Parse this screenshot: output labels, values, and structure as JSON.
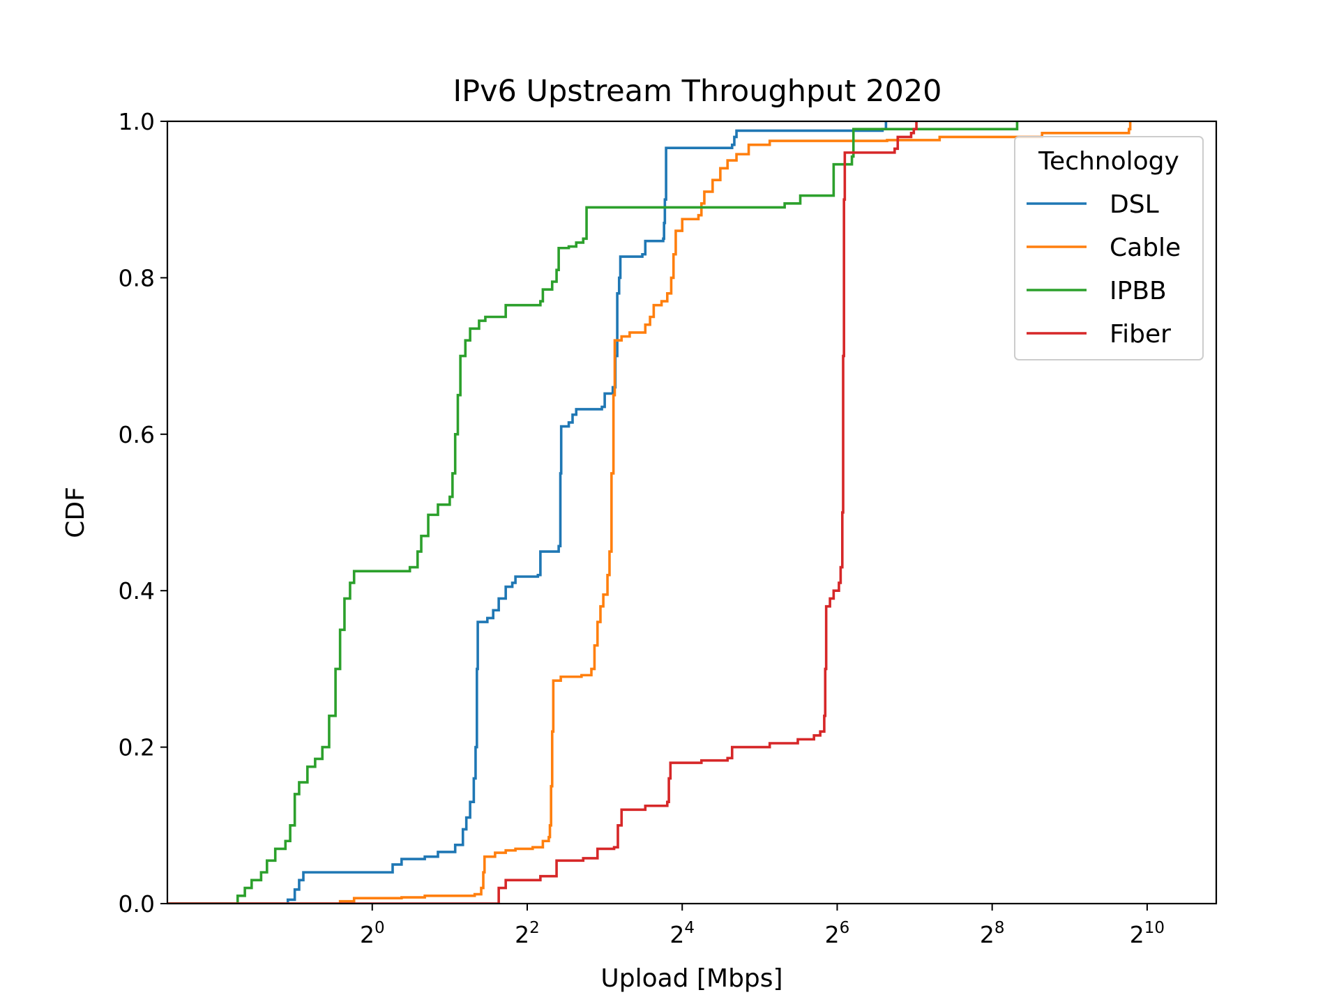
{
  "chart_data": {
    "type": "line",
    "title": "IPv6 Upstream Throughput 2020",
    "xlabel": "Upload [Mbps]",
    "ylabel": "CDF",
    "xscale": "log2",
    "xlim": [
      0.16,
      1900
    ],
    "ylim": [
      0,
      1.0
    ],
    "x_ticks": [
      {
        "value": 1,
        "base": "2",
        "exp": "0"
      },
      {
        "value": 4,
        "base": "2",
        "exp": "2"
      },
      {
        "value": 16,
        "base": "2",
        "exp": "4"
      },
      {
        "value": 64,
        "base": "2",
        "exp": "6"
      },
      {
        "value": 256,
        "base": "2",
        "exp": "8"
      },
      {
        "value": 1024,
        "base": "2",
        "exp": "10"
      }
    ],
    "y_ticks": [
      "0.0",
      "0.2",
      "0.4",
      "0.6",
      "0.8",
      "1.0"
    ],
    "grid": false,
    "legend": {
      "title": "Technology",
      "position": "upper right"
    },
    "series": [
      {
        "name": "DSL",
        "color": "#1f77b4",
        "points": [
          [
            0.16,
            0.0
          ],
          [
            0.46,
            0.0
          ],
          [
            0.47,
            0.005
          ],
          [
            0.5,
            0.018
          ],
          [
            0.52,
            0.03
          ],
          [
            0.54,
            0.04
          ],
          [
            1.15,
            0.04
          ],
          [
            1.2,
            0.05
          ],
          [
            1.3,
            0.057
          ],
          [
            1.6,
            0.06
          ],
          [
            1.8,
            0.066
          ],
          [
            2.1,
            0.075
          ],
          [
            2.25,
            0.095
          ],
          [
            2.32,
            0.11
          ],
          [
            2.4,
            0.13
          ],
          [
            2.48,
            0.16
          ],
          [
            2.52,
            0.2
          ],
          [
            2.55,
            0.3
          ],
          [
            2.57,
            0.36
          ],
          [
            2.8,
            0.365
          ],
          [
            2.95,
            0.375
          ],
          [
            3.1,
            0.39
          ],
          [
            3.3,
            0.405
          ],
          [
            3.5,
            0.41
          ],
          [
            3.6,
            0.418
          ],
          [
            4.4,
            0.42
          ],
          [
            4.5,
            0.45
          ],
          [
            5.3,
            0.457
          ],
          [
            5.38,
            0.55
          ],
          [
            5.42,
            0.61
          ],
          [
            5.8,
            0.615
          ],
          [
            6.0,
            0.625
          ],
          [
            6.2,
            0.632
          ],
          [
            7.8,
            0.635
          ],
          [
            8.0,
            0.652
          ],
          [
            8.6,
            0.66
          ],
          [
            8.8,
            0.7
          ],
          [
            8.95,
            0.78
          ],
          [
            9.1,
            0.8
          ],
          [
            9.2,
            0.827
          ],
          [
            11.2,
            0.83
          ],
          [
            11.5,
            0.847
          ],
          [
            13.5,
            0.85
          ],
          [
            13.6,
            0.87
          ],
          [
            13.7,
            0.9
          ],
          [
            13.85,
            0.966
          ],
          [
            25.0,
            0.97
          ],
          [
            25.5,
            0.98
          ],
          [
            26.0,
            0.988
          ],
          [
            96.0,
            0.99
          ],
          [
            99.0,
            1.0
          ]
        ]
      },
      {
        "name": "Cable",
        "color": "#ff7f0e",
        "points": [
          [
            0.16,
            0.0
          ],
          [
            0.7,
            0.0
          ],
          [
            0.75,
            0.003
          ],
          [
            0.85,
            0.007
          ],
          [
            1.3,
            0.008
          ],
          [
            1.6,
            0.01
          ],
          [
            2.5,
            0.012
          ],
          [
            2.65,
            0.02
          ],
          [
            2.7,
            0.04
          ],
          [
            2.73,
            0.06
          ],
          [
            3.0,
            0.065
          ],
          [
            3.3,
            0.068
          ],
          [
            3.6,
            0.07
          ],
          [
            4.2,
            0.072
          ],
          [
            4.6,
            0.08
          ],
          [
            4.85,
            0.085
          ],
          [
            4.9,
            0.1
          ],
          [
            4.95,
            0.15
          ],
          [
            5.0,
            0.22
          ],
          [
            5.05,
            0.285
          ],
          [
            5.4,
            0.29
          ],
          [
            6.5,
            0.292
          ],
          [
            7.1,
            0.3
          ],
          [
            7.3,
            0.33
          ],
          [
            7.5,
            0.36
          ],
          [
            7.7,
            0.38
          ],
          [
            7.9,
            0.395
          ],
          [
            8.2,
            0.42
          ],
          [
            8.35,
            0.45
          ],
          [
            8.5,
            0.55
          ],
          [
            8.65,
            0.65
          ],
          [
            8.75,
            0.72
          ],
          [
            9.3,
            0.725
          ],
          [
            10.0,
            0.73
          ],
          [
            11.5,
            0.74
          ],
          [
            12.0,
            0.75
          ],
          [
            12.4,
            0.765
          ],
          [
            13.3,
            0.77
          ],
          [
            14.0,
            0.78
          ],
          [
            14.5,
            0.8
          ],
          [
            14.8,
            0.83
          ],
          [
            15.1,
            0.86
          ],
          [
            16.0,
            0.875
          ],
          [
            18.5,
            0.88
          ],
          [
            19.0,
            0.895
          ],
          [
            19.5,
            0.91
          ],
          [
            21.0,
            0.925
          ],
          [
            22.5,
            0.94
          ],
          [
            24.0,
            0.95
          ],
          [
            26.0,
            0.958
          ],
          [
            29.0,
            0.97
          ],
          [
            35.0,
            0.975
          ],
          [
            100.0,
            0.976
          ],
          [
            160.0,
            0.98
          ],
          [
            400.0,
            0.985
          ],
          [
            870.0,
            0.99
          ],
          [
            880.0,
            1.0
          ]
        ]
      },
      {
        "name": "IPBB",
        "color": "#2ca02c",
        "points": [
          [
            0.16,
            0.0
          ],
          [
            0.28,
            0.0
          ],
          [
            0.3,
            0.01
          ],
          [
            0.32,
            0.02
          ],
          [
            0.34,
            0.03
          ],
          [
            0.37,
            0.04
          ],
          [
            0.39,
            0.055
          ],
          [
            0.42,
            0.07
          ],
          [
            0.46,
            0.08
          ],
          [
            0.48,
            0.1
          ],
          [
            0.5,
            0.14
          ],
          [
            0.52,
            0.155
          ],
          [
            0.56,
            0.175
          ],
          [
            0.6,
            0.185
          ],
          [
            0.64,
            0.2
          ],
          [
            0.68,
            0.24
          ],
          [
            0.72,
            0.3
          ],
          [
            0.75,
            0.35
          ],
          [
            0.78,
            0.39
          ],
          [
            0.82,
            0.41
          ],
          [
            0.85,
            0.425
          ],
          [
            1.4,
            0.43
          ],
          [
            1.5,
            0.45
          ],
          [
            1.55,
            0.47
          ],
          [
            1.65,
            0.497
          ],
          [
            1.8,
            0.51
          ],
          [
            2.0,
            0.52
          ],
          [
            2.05,
            0.55
          ],
          [
            2.1,
            0.6
          ],
          [
            2.15,
            0.65
          ],
          [
            2.2,
            0.7
          ],
          [
            2.3,
            0.72
          ],
          [
            2.4,
            0.735
          ],
          [
            2.6,
            0.745
          ],
          [
            2.75,
            0.75
          ],
          [
            3.3,
            0.765
          ],
          [
            4.5,
            0.77
          ],
          [
            4.6,
            0.785
          ],
          [
            5.0,
            0.795
          ],
          [
            5.2,
            0.81
          ],
          [
            5.3,
            0.838
          ],
          [
            5.8,
            0.84
          ],
          [
            6.2,
            0.845
          ],
          [
            6.6,
            0.85
          ],
          [
            6.8,
            0.89
          ],
          [
            19.0,
            0.89
          ],
          [
            40.0,
            0.895
          ],
          [
            46.0,
            0.905
          ],
          [
            62.0,
            0.945
          ],
          [
            73.0,
            0.955
          ],
          [
            74.0,
            0.99
          ],
          [
            320.0,
            1.0
          ]
        ]
      },
      {
        "name": "Fiber",
        "color": "#d62728",
        "points": [
          [
            0.16,
            0.0
          ],
          [
            2.9,
            0.0
          ],
          [
            3.1,
            0.02
          ],
          [
            3.3,
            0.03
          ],
          [
            4.5,
            0.035
          ],
          [
            5.2,
            0.055
          ],
          [
            6.6,
            0.058
          ],
          [
            7.5,
            0.07
          ],
          [
            8.7,
            0.072
          ],
          [
            9.0,
            0.1
          ],
          [
            9.3,
            0.12
          ],
          [
            11.5,
            0.125
          ],
          [
            14.0,
            0.13
          ],
          [
            14.2,
            0.16
          ],
          [
            14.4,
            0.18
          ],
          [
            19.0,
            0.183
          ],
          [
            24.0,
            0.186
          ],
          [
            25.0,
            0.2
          ],
          [
            35.0,
            0.205
          ],
          [
            45.0,
            0.21
          ],
          [
            52.0,
            0.215
          ],
          [
            55.0,
            0.22
          ],
          [
            57.0,
            0.24
          ],
          [
            57.5,
            0.3
          ],
          [
            58.0,
            0.38
          ],
          [
            60.0,
            0.39
          ],
          [
            62.0,
            0.4
          ],
          [
            65.0,
            0.41
          ],
          [
            66.0,
            0.43
          ],
          [
            67.0,
            0.5
          ],
          [
            67.5,
            0.7
          ],
          [
            68.0,
            0.9
          ],
          [
            68.5,
            0.96
          ],
          [
            107.0,
            0.965
          ],
          [
            110.0,
            0.98
          ],
          [
            124.0,
            0.985
          ],
          [
            127.0,
            0.99
          ],
          [
            130.0,
            1.0
          ]
        ]
      }
    ]
  }
}
